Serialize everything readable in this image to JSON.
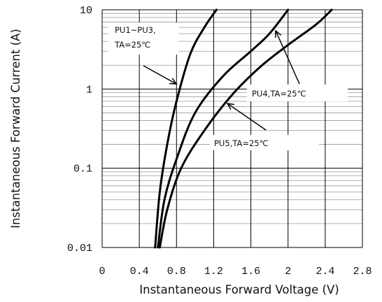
{
  "chart_data": {
    "type": "line",
    "title": "",
    "xlabel": "Instantaneous Forward Voltage (V)",
    "ylabel": "Instantaneous Forward Current (A)",
    "x_scale": "linear",
    "y_scale": "log",
    "xlim": [
      0,
      2.8
    ],
    "ylim": [
      0.01,
      10
    ],
    "x_ticks": [
      "0",
      "0.4",
      "0.8",
      "1.2",
      "1.6",
      "2",
      "2.4",
      "2.8"
    ],
    "y_ticks": [
      "10",
      "1",
      "0.1",
      "0.01"
    ],
    "grid": true,
    "series": [
      {
        "name": "PU1~PU3, TA=25℃",
        "x": [
          0.57,
          0.62,
          0.7,
          0.8,
          0.95,
          1.1,
          1.23
        ],
        "y": [
          0.01,
          0.05,
          0.2,
          0.7,
          2.8,
          6.0,
          10
        ]
      },
      {
        "name": "PU4,TA=25℃",
        "x": [
          0.6,
          0.67,
          0.8,
          1.0,
          1.3,
          1.6,
          1.8,
          2.0
        ],
        "y": [
          0.01,
          0.04,
          0.13,
          0.5,
          1.45,
          3.0,
          5.0,
          10
        ]
      },
      {
        "name": "PU5,TA=25℃",
        "x": [
          0.62,
          0.7,
          0.85,
          1.1,
          1.4,
          1.7,
          2.0,
          2.3,
          2.47
        ],
        "y": [
          0.01,
          0.03,
          0.1,
          0.3,
          0.85,
          1.9,
          3.6,
          6.5,
          10
        ]
      }
    ],
    "annotations": [
      {
        "text_lines": [
          "PU1~PU3,",
          "TA=25℃"
        ],
        "points_to_series": 0
      },
      {
        "text_lines": [
          "PU4,TA=25℃"
        ],
        "points_to_series": 1
      },
      {
        "text_lines": [
          "PU5,TA=25℃"
        ],
        "points_to_series": 2
      }
    ],
    "colors": {
      "curve": "#000000",
      "grid": "#999999",
      "background": "#ffffff"
    }
  }
}
